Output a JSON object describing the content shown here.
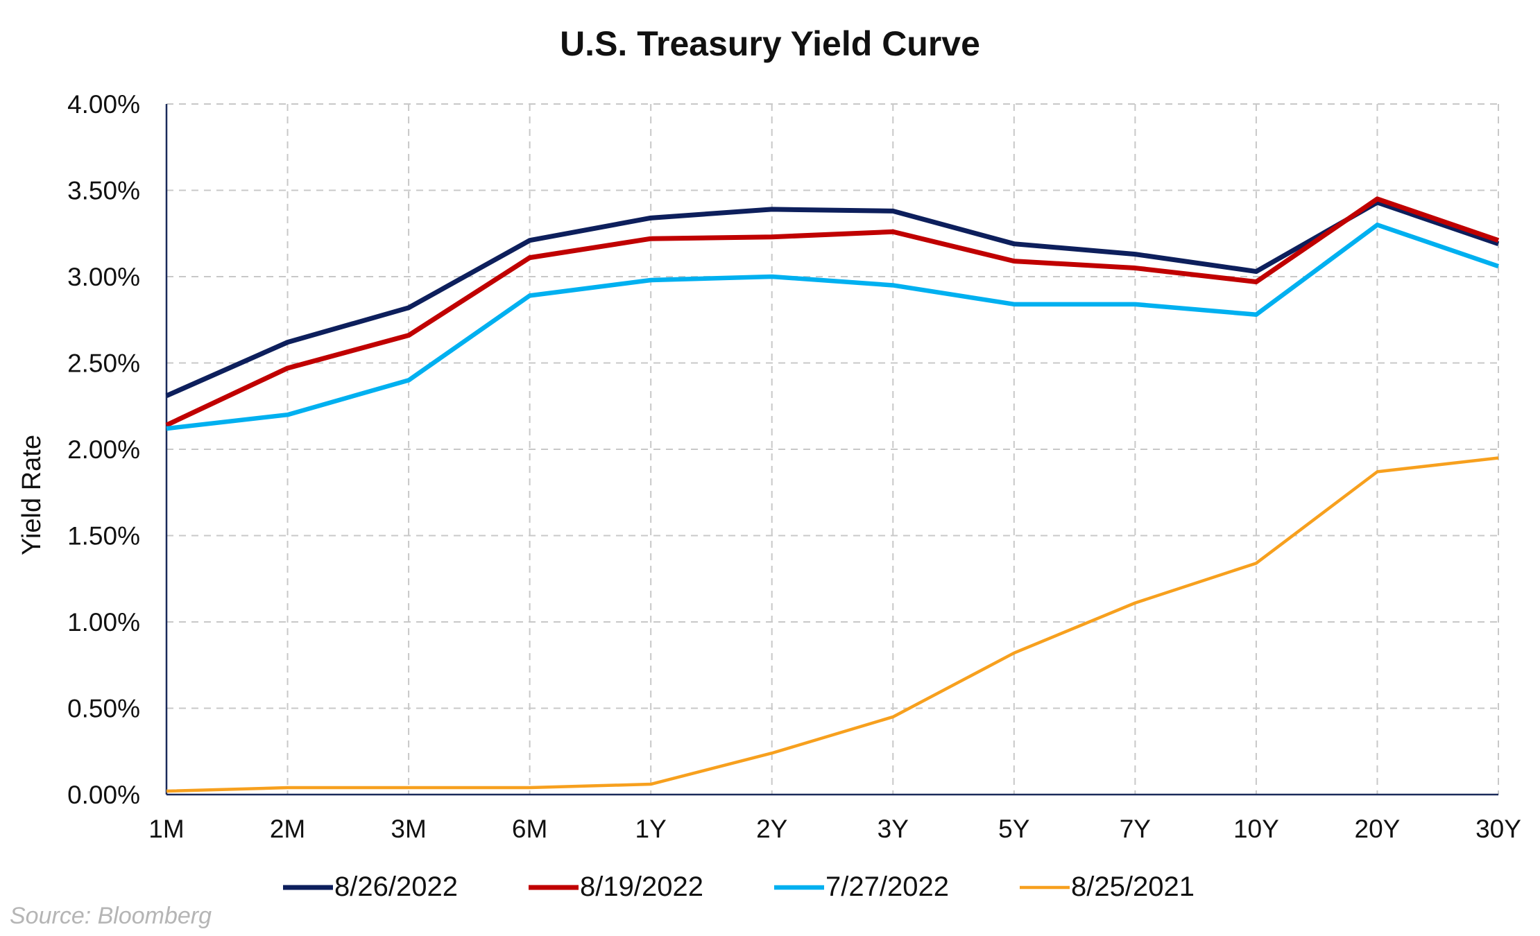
{
  "chart_data": {
    "type": "line",
    "title": "U.S. Treasury Yield Curve",
    "xlabel": "",
    "ylabel": "Yield Rate",
    "categories": [
      "1M",
      "2M",
      "3M",
      "6M",
      "1Y",
      "2Y",
      "3Y",
      "5Y",
      "7Y",
      "10Y",
      "20Y",
      "30Y"
    ],
    "ylim": [
      0,
      4
    ],
    "yticks": [
      {
        "value": 0,
        "label": "0.00%"
      },
      {
        "value": 0.5,
        "label": "0.50%"
      },
      {
        "value": 1,
        "label": "1.00%"
      },
      {
        "value": 1.5,
        "label": "1.50%"
      },
      {
        "value": 2,
        "label": "2.00%"
      },
      {
        "value": 2.5,
        "label": "2.50%"
      },
      {
        "value": 3,
        "label": "3.00%"
      },
      {
        "value": 3.5,
        "label": "3.50%"
      },
      {
        "value": 4,
        "label": "4.00%"
      }
    ],
    "grid": true,
    "legend_position": "bottom",
    "series": [
      {
        "name": "8/26/2022",
        "color": "#0d1f5c",
        "values": [
          2.31,
          2.62,
          2.82,
          3.21,
          3.34,
          3.39,
          3.38,
          3.19,
          3.13,
          3.03,
          3.43,
          3.19
        ]
      },
      {
        "name": "8/19/2022",
        "color": "#c00000",
        "values": [
          2.14,
          2.47,
          2.66,
          3.11,
          3.22,
          3.23,
          3.26,
          3.09,
          3.05,
          2.97,
          3.45,
          3.21
        ]
      },
      {
        "name": "7/27/2022",
        "color": "#00b0f0",
        "values": [
          2.12,
          2.2,
          2.4,
          2.89,
          2.98,
          3.0,
          2.95,
          2.84,
          2.84,
          2.78,
          3.3,
          3.06
        ]
      },
      {
        "name": "8/25/2021",
        "color": "#f7a01e",
        "values": [
          0.02,
          0.04,
          0.04,
          0.04,
          0.06,
          0.24,
          0.45,
          0.82,
          1.11,
          1.34,
          1.87,
          1.95
        ]
      }
    ]
  },
  "source": "Source: Bloomberg"
}
